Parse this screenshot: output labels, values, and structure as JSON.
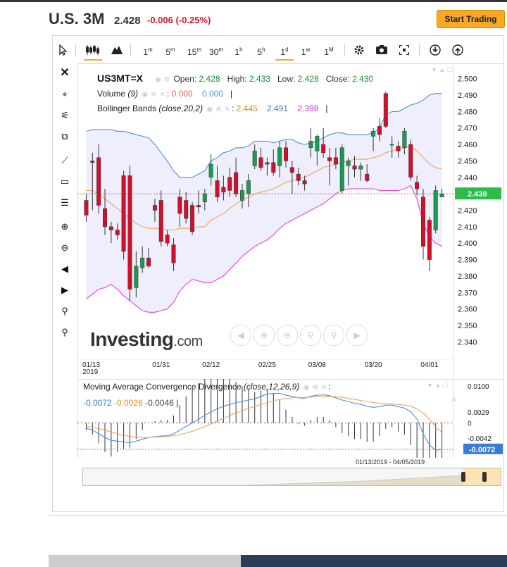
{
  "header": {
    "symbol": "U.S. 3M",
    "price": "2.428",
    "change": "-0.006 (-0.25%)",
    "trade_button": "Start Trading"
  },
  "toolbar": {
    "intervals": [
      "1m",
      "5m",
      "15m",
      "30m",
      "1h",
      "5h",
      "1d",
      "1w",
      "1M"
    ],
    "active_interval": "1d"
  },
  "legend": {
    "symbol": "US3MT=X",
    "open_label": "Open:",
    "open": "2.428",
    "high_label": "High:",
    "high": "2.433",
    "low_label": "Low:",
    "low": "2.428",
    "close_label": "Close:",
    "close": "2.430",
    "volume_label": "Volume",
    "volume_param": "(9)",
    "volume_val1": "0.000",
    "volume_val2": "0.000",
    "bb_label": "Bollinger Bands",
    "bb_param": "(close,20,2)",
    "bb_v1": "2.445",
    "bb_v2": "2.491",
    "bb_v3": "2.398"
  },
  "macd_legend": {
    "label": "Moving Average Convergence Divergence",
    "param": "(close,12,26,9)",
    "v1": "-0.0072",
    "v2": "-0.0026",
    "v3": "-0.0046"
  },
  "watermark": {
    "brand": "Investing",
    "suffix": ".com"
  },
  "price_axis_current": "2.430",
  "macd_axis_current": "-0.0072",
  "range_label": "01/13/2019 - 04/05/2019",
  "colors": {
    "up": "#1a9b52",
    "down": "#d0112b",
    "bb_mid": "#f3a15d",
    "bb_upper": "#4a90d9",
    "bb_lower": "#e83fe0",
    "bb_fill": "#eeeefc",
    "current": "#2dbc4a",
    "macd_line": "#4a90d9",
    "signal_line": "#f3a15d"
  },
  "chart_data": [
    {
      "type": "candlestick",
      "ylim": [
        2.335,
        2.505
      ],
      "yticks": [
        2.5,
        2.49,
        2.48,
        2.47,
        2.46,
        2.45,
        2.44,
        2.43,
        2.42,
        2.41,
        2.4,
        2.39,
        2.38,
        2.37,
        2.36,
        2.35,
        2.34
      ],
      "x_ticks": [
        {
          "label": "01/13\n2019",
          "i": 0
        },
        {
          "label": "01/31",
          "i": 12
        },
        {
          "label": "02/12",
          "i": 20
        },
        {
          "label": "02/25",
          "i": 29
        },
        {
          "label": "03/08",
          "i": 37
        },
        {
          "label": "03/20",
          "i": 46
        },
        {
          "label": "04/01",
          "i": 55
        }
      ],
      "candles": [
        {
          "o": 2.426,
          "h": 2.43,
          "l": 2.413,
          "c": 2.417
        },
        {
          "o": 2.45,
          "h": 2.455,
          "l": 2.42,
          "c": 2.449
        },
        {
          "o": 2.452,
          "h": 2.46,
          "l": 2.418,
          "c": 2.423
        },
        {
          "o": 2.421,
          "h": 2.433,
          "l": 2.405,
          "c": 2.41
        },
        {
          "o": 2.41,
          "h": 2.413,
          "l": 2.4,
          "c": 2.408
        },
        {
          "o": 2.408,
          "h": 2.412,
          "l": 2.402,
          "c": 2.405
        },
        {
          "o": 2.441,
          "h": 2.444,
          "l": 2.39,
          "c": 2.395
        },
        {
          "o": 2.441,
          "h": 2.447,
          "l": 2.365,
          "c": 2.372
        },
        {
          "o": 2.373,
          "h": 2.395,
          "l": 2.367,
          "c": 2.386
        },
        {
          "o": 2.385,
          "h": 2.398,
          "l": 2.382,
          "c": 2.391
        },
        {
          "o": 2.391,
          "h": 2.397,
          "l": 2.385,
          "c": 2.386
        },
        {
          "o": 2.423,
          "h": 2.427,
          "l": 2.413,
          "c": 2.42
        },
        {
          "o": 2.426,
          "h": 2.432,
          "l": 2.398,
          "c": 2.401
        },
        {
          "o": 2.405,
          "h": 2.408,
          "l": 2.398,
          "c": 2.4
        },
        {
          "o": 2.399,
          "h": 2.403,
          "l": 2.383,
          "c": 2.388
        },
        {
          "o": 2.428,
          "h": 2.433,
          "l": 2.41,
          "c": 2.418
        },
        {
          "o": 2.426,
          "h": 2.431,
          "l": 2.412,
          "c": 2.415
        },
        {
          "o": 2.423,
          "h": 2.425,
          "l": 2.405,
          "c": 2.407
        },
        {
          "o": 2.423,
          "h": 2.432,
          "l": 2.418,
          "c": 2.422
        },
        {
          "o": 2.425,
          "h": 2.433,
          "l": 2.42,
          "c": 2.43
        },
        {
          "o": 2.44,
          "h": 2.454,
          "l": 2.435,
          "c": 2.448
        },
        {
          "o": 2.438,
          "h": 2.447,
          "l": 2.425,
          "c": 2.428
        },
        {
          "o": 2.434,
          "h": 2.441,
          "l": 2.426,
          "c": 2.431
        },
        {
          "o": 2.44,
          "h": 2.446,
          "l": 2.428,
          "c": 2.432
        },
        {
          "o": 2.443,
          "h": 2.452,
          "l": 2.428,
          "c": 2.43
        },
        {
          "o": 2.426,
          "h": 2.436,
          "l": 2.421,
          "c": 2.432
        },
        {
          "o": 2.43,
          "h": 2.442,
          "l": 2.422,
          "c": 2.438
        },
        {
          "o": 2.447,
          "h": 2.46,
          "l": 2.445,
          "c": 2.456
        },
        {
          "o": 2.452,
          "h": 2.458,
          "l": 2.444,
          "c": 2.446
        },
        {
          "o": 2.449,
          "h": 2.452,
          "l": 2.441,
          "c": 2.448
        },
        {
          "o": 2.449,
          "h": 2.457,
          "l": 2.441,
          "c": 2.443
        },
        {
          "o": 2.447,
          "h": 2.462,
          "l": 2.44,
          "c": 2.458
        },
        {
          "o": 2.458,
          "h": 2.462,
          "l": 2.446,
          "c": 2.45
        },
        {
          "o": 2.446,
          "h": 2.45,
          "l": 2.43,
          "c": 2.443
        },
        {
          "o": 2.442,
          "h": 2.446,
          "l": 2.435,
          "c": 2.438
        },
        {
          "o": 2.438,
          "h": 2.441,
          "l": 2.432,
          "c": 2.436
        },
        {
          "o": 2.458,
          "h": 2.47,
          "l": 2.452,
          "c": 2.462
        },
        {
          "o": 2.456,
          "h": 2.466,
          "l": 2.447,
          "c": 2.465
        },
        {
          "o": 2.46,
          "h": 2.47,
          "l": 2.452,
          "c": 2.455
        },
        {
          "o": 2.452,
          "h": 2.458,
          "l": 2.435,
          "c": 2.45
        },
        {
          "o": 2.452,
          "h": 2.458,
          "l": 2.445,
          "c": 2.448
        },
        {
          "o": 2.432,
          "h": 2.46,
          "l": 2.43,
          "c": 2.458
        },
        {
          "o": 2.447,
          "h": 2.452,
          "l": 2.435,
          "c": 2.45
        },
        {
          "o": 2.447,
          "h": 2.453,
          "l": 2.44,
          "c": 2.445
        },
        {
          "o": 2.445,
          "h": 2.449,
          "l": 2.438,
          "c": 2.447
        },
        {
          "o": 2.442,
          "h": 2.448,
          "l": 2.437,
          "c": 2.438
        },
        {
          "o": 2.465,
          "h": 2.47,
          "l": 2.456,
          "c": 2.468
        },
        {
          "o": 2.471,
          "h": 2.476,
          "l": 2.462,
          "c": 2.466
        },
        {
          "o": 2.491,
          "h": 2.492,
          "l": 2.47,
          "c": 2.471
        },
        {
          "o": 2.46,
          "h": 2.465,
          "l": 2.452,
          "c": 2.46
        },
        {
          "o": 2.459,
          "h": 2.462,
          "l": 2.452,
          "c": 2.456
        },
        {
          "o": 2.458,
          "h": 2.47,
          "l": 2.454,
          "c": 2.468
        },
        {
          "o": 2.46,
          "h": 2.463,
          "l": 2.438,
          "c": 2.44
        },
        {
          "o": 2.437,
          "h": 2.441,
          "l": 2.429,
          "c": 2.433
        },
        {
          "o": 2.428,
          "h": 2.433,
          "l": 2.39,
          "c": 2.398
        },
        {
          "o": 2.414,
          "h": 2.416,
          "l": 2.383,
          "c": 2.39
        },
        {
          "o": 2.408,
          "h": 2.435,
          "l": 2.406,
          "c": 2.432
        },
        {
          "o": 2.428,
          "h": 2.433,
          "l": 2.428,
          "c": 2.43
        }
      ],
      "bb_upper": [
        2.468,
        2.469,
        2.469,
        2.469,
        2.469,
        2.468,
        2.468,
        2.467,
        2.466,
        2.465,
        2.464,
        2.46,
        2.455,
        2.45,
        2.444,
        2.44,
        2.44,
        2.44,
        2.442,
        2.444,
        2.45,
        2.452,
        2.455,
        2.456,
        2.458,
        2.458,
        2.459,
        2.462,
        2.462,
        2.462,
        2.461,
        2.462,
        2.463,
        2.463,
        2.461,
        2.46,
        2.461,
        2.462,
        2.464,
        2.466,
        2.467,
        2.467,
        2.466,
        2.466,
        2.466,
        2.466,
        2.467,
        2.47,
        2.478,
        2.48,
        2.48,
        2.482,
        2.484,
        2.485,
        2.487,
        2.49,
        2.491,
        2.491
      ],
      "bb_mid": [
        2.432,
        2.432,
        2.43,
        2.427,
        2.424,
        2.421,
        2.418,
        2.415,
        2.412,
        2.41,
        2.409,
        2.409,
        2.409,
        2.408,
        2.408,
        2.409,
        2.409,
        2.409,
        2.41,
        2.41,
        2.414,
        2.416,
        2.418,
        2.421,
        2.424,
        2.426,
        2.428,
        2.43,
        2.431,
        2.432,
        2.433,
        2.435,
        2.437,
        2.438,
        2.439,
        2.44,
        2.442,
        2.444,
        2.446,
        2.447,
        2.448,
        2.449,
        2.45,
        2.451,
        2.451,
        2.451,
        2.452,
        2.453,
        2.455,
        2.456,
        2.457,
        2.458,
        2.459,
        2.456,
        2.452,
        2.448,
        2.446,
        2.445
      ],
      "bb_lower": [
        2.366,
        2.369,
        2.372,
        2.373,
        2.375,
        2.372,
        2.368,
        2.365,
        2.362,
        2.359,
        2.358,
        2.358,
        2.359,
        2.36,
        2.364,
        2.371,
        2.375,
        2.378,
        2.377,
        2.376,
        2.376,
        2.378,
        2.38,
        2.384,
        2.388,
        2.392,
        2.395,
        2.398,
        2.4,
        2.402,
        2.405,
        2.409,
        2.412,
        2.414,
        2.416,
        2.418,
        2.42,
        2.422,
        2.424,
        2.427,
        2.43,
        2.432,
        2.433,
        2.433,
        2.433,
        2.433,
        2.433,
        2.432,
        2.432,
        2.432,
        2.432,
        2.433,
        2.435,
        2.427,
        2.412,
        2.404,
        2.4,
        2.398
      ]
    },
    {
      "type": "macd",
      "ylim": [
        -0.008,
        0.0104
      ],
      "yticks": [
        0.01,
        0.0029,
        0,
        -0.0042
      ],
      "macd": [
        -0.0015,
        -0.002,
        -0.003,
        -0.004,
        -0.0048,
        -0.005,
        -0.0052,
        -0.0054,
        -0.005,
        -0.0045,
        -0.004,
        -0.0038,
        -0.0036,
        -0.0035,
        -0.003,
        -0.002,
        -0.001,
        0.0,
        0.001,
        0.002,
        0.003,
        0.0038,
        0.0045,
        0.005,
        0.0055,
        0.0058,
        0.0062,
        0.0065,
        0.0072,
        0.0078,
        0.008,
        0.008,
        0.0075,
        0.0072,
        0.0068,
        0.0067,
        0.0072,
        0.0075,
        0.0076,
        0.0074,
        0.0068,
        0.0062,
        0.0058,
        0.0053,
        0.005,
        0.0045,
        0.0042,
        0.0044,
        0.0048,
        0.0048,
        0.0044,
        0.004,
        0.003,
        0.001,
        -0.003,
        -0.006,
        -0.0075,
        -0.0072
      ],
      "signal": [
        -0.001,
        -0.0012,
        -0.0016,
        -0.002,
        -0.0025,
        -0.003,
        -0.0034,
        -0.0037,
        -0.0039,
        -0.004,
        -0.004,
        -0.0039,
        -0.0038,
        -0.0037,
        -0.0035,
        -0.0032,
        -0.0028,
        -0.0023,
        -0.0017,
        -0.001,
        -0.0003,
        0.0005,
        0.0012,
        0.002,
        0.0027,
        0.0033,
        0.0039,
        0.0044,
        0.005,
        0.0055,
        0.006,
        0.0064,
        0.0066,
        0.0068,
        0.0069,
        0.0069,
        0.007,
        0.0071,
        0.0072,
        0.0072,
        0.0071,
        0.0069,
        0.0067,
        0.0064,
        0.0061,
        0.0058,
        0.0055,
        0.0053,
        0.0052,
        0.0051,
        0.005,
        0.0048,
        0.0045,
        0.0038,
        0.0026,
        0.001,
        -0.0012,
        -0.0026
      ]
    }
  ]
}
